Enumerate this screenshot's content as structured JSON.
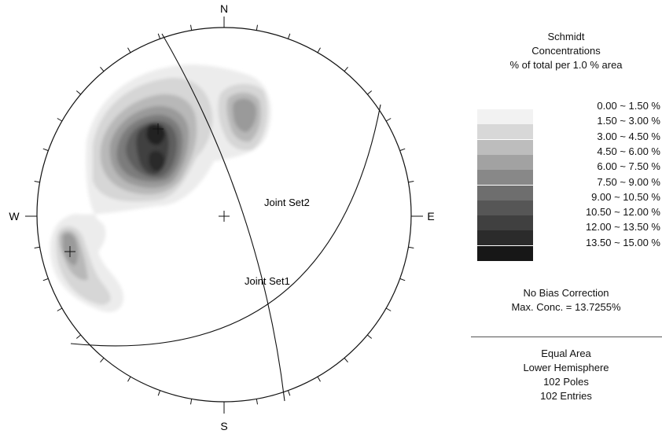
{
  "compass": {
    "north": "N",
    "south": "S",
    "east": "E",
    "west": "W"
  },
  "planes": [
    {
      "label": "Joint Set2",
      "color": "#111111"
    },
    {
      "label": "Joint Set1",
      "color": "#111111"
    }
  ],
  "legend": {
    "title": "Schmidt",
    "subtitle": "Concentrations",
    "unit_line": "% of total per 1.0 % area",
    "bins": [
      {
        "range": "0.00 ~  1.50 %",
        "color": "#f2f2f2"
      },
      {
        "range": "1.50 ~  3.00 %",
        "color": "#d8d8d8"
      },
      {
        "range": "3.00 ~  4.50 %",
        "color": "#bdbdbd"
      },
      {
        "range": "4.50 ~  6.00 %",
        "color": "#a2a2a2"
      },
      {
        "range": "6.00 ~  7.50 %",
        "color": "#888888"
      },
      {
        "range": "7.50 ~  9.00 %",
        "color": "#6e6e6e"
      },
      {
        "range": "9.00 ~ 10.50 %",
        "color": "#565656"
      },
      {
        "range": "10.50 ~ 12.00 %",
        "color": "#404040"
      },
      {
        "range": "12.00 ~ 13.50 %",
        "color": "#2b2b2b"
      },
      {
        "range": "13.50 ~ 15.00 %",
        "color": "#171717"
      }
    ],
    "bias": "No Bias Correction",
    "max_conc": "Max. Conc. = 13.7255%",
    "projection": "Equal Area",
    "hemisphere": "Lower Hemisphere",
    "poles": "102 Poles",
    "entries": "102 Entries"
  }
}
